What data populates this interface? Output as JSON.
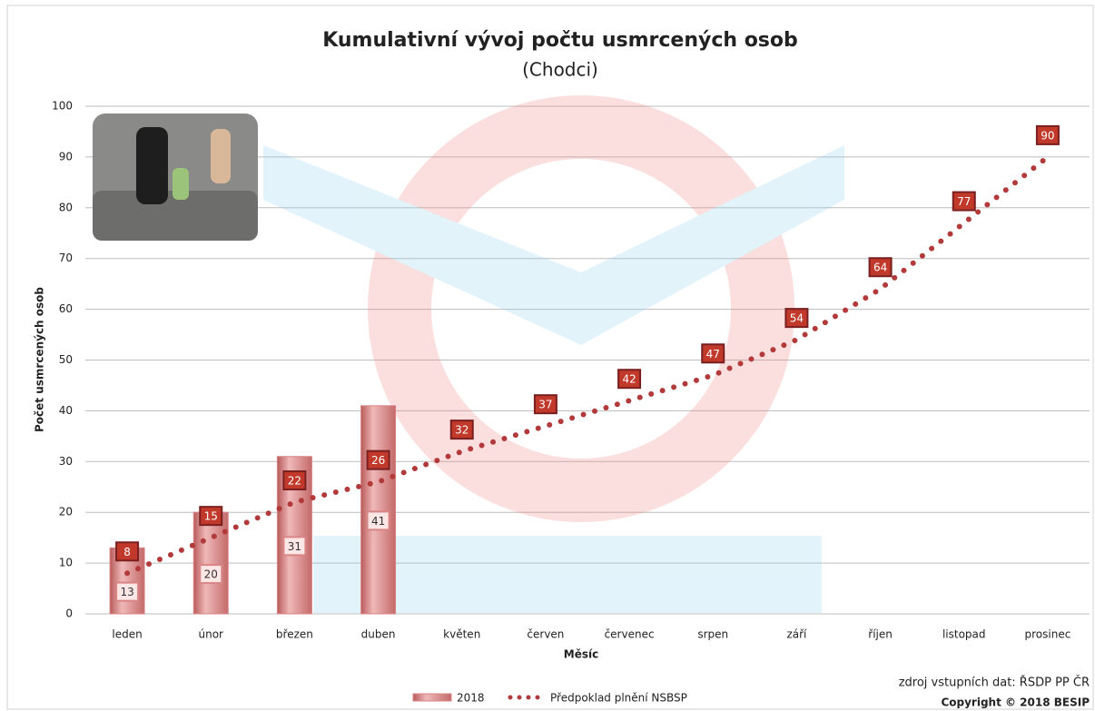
{
  "chart_data": {
    "type": "bar-line",
    "title": "Kumulativní vývoj počtu usmrcených osob",
    "subtitle": "(Chodci)",
    "y_label": "Počet usmrcených osob",
    "x_label": "Měsíc",
    "source": "zdroj vstupních dat: ŘSDP PP ČR",
    "copyright": "Copyright © 2018 BESIP",
    "categories": [
      "leden",
      "únor",
      "březen",
      "duben",
      "květen",
      "červen",
      "červenec",
      "srpen",
      "září",
      "říjen",
      "listopad",
      "prosinec"
    ],
    "series": [
      {
        "name": "2018",
        "kind": "bar",
        "color": "#d98585",
        "values": [
          13,
          20,
          31,
          41,
          null,
          null,
          null,
          null,
          null,
          null,
          null,
          null
        ]
      },
      {
        "name": "Předpoklad plnění NSBSP",
        "kind": "line",
        "color": "#b23a3a",
        "values": [
          8,
          15,
          22,
          26,
          32,
          37,
          42,
          47,
          54,
          64,
          77,
          90
        ]
      }
    ],
    "ylim": [
      0,
      100
    ],
    "yticks": [
      0,
      10,
      20,
      30,
      40,
      50,
      60,
      70,
      80,
      90,
      100
    ],
    "grid": true
  }
}
